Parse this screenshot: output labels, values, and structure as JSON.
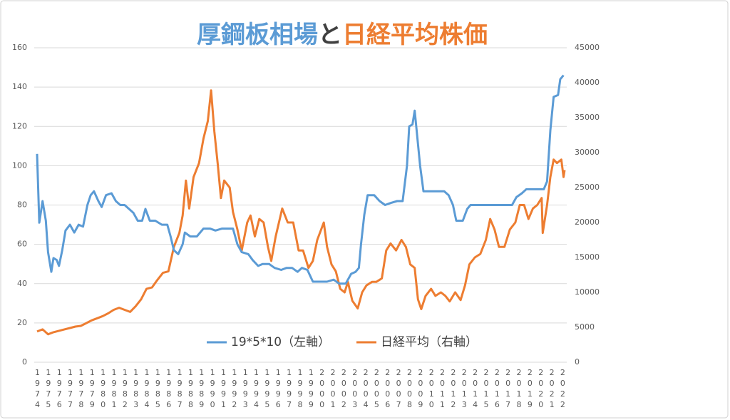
{
  "chart_data": {
    "type": "line",
    "title": [
      "厚鋼板相場",
      "と",
      "日経平均株価"
    ],
    "title_colors": [
      "#5b9bd5",
      "#404040",
      "#ed7d31"
    ],
    "xlim": [
      1974,
      2022.2
    ],
    "xticks": [
      1974,
      1975,
      1976,
      1977,
      1978,
      1979,
      1980,
      1981,
      1982,
      1983,
      1984,
      1985,
      1986,
      1987,
      1988,
      1989,
      1990,
      1991,
      1992,
      1993,
      1994,
      1995,
      1996,
      1997,
      1998,
      1999,
      2000,
      2001,
      2002,
      2003,
      2004,
      2005,
      2006,
      2007,
      2008,
      2009,
      2010,
      2011,
      2012,
      2013,
      2014,
      2015,
      2016,
      2017,
      2018,
      2019,
      2020,
      2021,
      2022
    ],
    "ylim": [
      0,
      160
    ],
    "yticks": [
      0,
      20,
      40,
      60,
      80,
      100,
      120,
      140,
      160
    ],
    "y2lim": [
      0,
      45000
    ],
    "y2ticks": [
      0,
      5000,
      10000,
      15000,
      20000,
      25000,
      30000,
      35000,
      40000,
      45000
    ],
    "grid": true,
    "legend": "bottom",
    "series": [
      {
        "name": "19*5*10（左軸）",
        "color": "#5b9bd5",
        "axis": "y",
        "x": [
          1974.0,
          1974.2,
          1974.5,
          1974.8,
          1975.0,
          1975.3,
          1975.5,
          1975.8,
          1976.0,
          1976.3,
          1976.6,
          1977,
          1977.4,
          1977.8,
          1978.2,
          1978.6,
          1978.9,
          1979.2,
          1979.6,
          1979.9,
          1980.3,
          1980.8,
          1981.2,
          1981.6,
          1982.0,
          1982.4,
          1982.8,
          1983.2,
          1983.6,
          1983.9,
          1984.3,
          1984.8,
          1985.4,
          1985.9,
          1986.2,
          1986.5,
          1986.9,
          1987.3,
          1987.5,
          1988,
          1988.6,
          1989.2,
          1989.8,
          1990.3,
          1990.9,
          1991.4,
          1991.9,
          1992.3,
          1992.7,
          1993.3,
          1993.7,
          1994.2,
          1994.6,
          1995.2,
          1995.7,
          1996.3,
          1996.8,
          1997.3,
          1997.8,
          1998.2,
          1998.7,
          1999.2,
          1999.8,
          2000.5,
          2001.1,
          2001.6,
          2002.2,
          2002.7,
          2003.1,
          2003.4,
          2003.6,
          2003.9,
          2004.2,
          2004.8,
          2005.3,
          2005.8,
          2006.3,
          2006.9,
          2007.4,
          2007.8,
          2008.0,
          2008.3,
          2008.5,
          2008.7,
          2009.0,
          2009.3,
          2009.8,
          2010.5,
          2011.2,
          2011.6,
          2012.0,
          2012.3,
          2012.9,
          2013.3,
          2013.6,
          2014.5,
          2015.5,
          2016.5,
          2017.4,
          2017.8,
          2018.3,
          2018.7,
          2019.5,
          2020.3,
          2020.6,
          2020.9,
          2021.2,
          2021.6,
          2021.8,
          2022.1
        ],
        "values": [
          106,
          71,
          82,
          72,
          56,
          46,
          53,
          52,
          49,
          57,
          67,
          70,
          66,
          70,
          69,
          80,
          85,
          87,
          82,
          79,
          85,
          86,
          82,
          80,
          80,
          78,
          76,
          72,
          72,
          78,
          72,
          72,
          70,
          70,
          64,
          57,
          55,
          60,
          66,
          64,
          64,
          68,
          68,
          67,
          68,
          68,
          68,
          60,
          56,
          55,
          52,
          49,
          50,
          50,
          48,
          47,
          48,
          48,
          46,
          48,
          47,
          41,
          41,
          41,
          42,
          40,
          40,
          45,
          46,
          48,
          60,
          75,
          85,
          85,
          82,
          80,
          81,
          82,
          82,
          100,
          120,
          121,
          128,
          117,
          100,
          87,
          87,
          87,
          87,
          85,
          80,
          72,
          72,
          78,
          80,
          80,
          80,
          80,
          80,
          84,
          86,
          88,
          88,
          88,
          92,
          118,
          135,
          136,
          144,
          146
        ]
      },
      {
        "name": "日経平均（右軸）",
        "color": "#ed7d31",
        "axis": "y2",
        "x": [
          1974.0,
          1974.5,
          1975.0,
          1975.5,
          1976,
          1976.5,
          1977,
          1977.5,
          1978,
          1978.5,
          1979,
          1979.5,
          1980,
          1980.5,
          1981,
          1981.5,
          1982,
          1982.5,
          1983,
          1983.5,
          1984,
          1984.5,
          1985,
          1985.5,
          1986,
          1986.5,
          1987,
          1987.3,
          1987.6,
          1987.9,
          1988.3,
          1988.8,
          1989.2,
          1989.6,
          1989.9,
          1990.2,
          1990.5,
          1990.8,
          1991.1,
          1991.6,
          1991.9,
          1992.3,
          1992.7,
          1993.2,
          1993.5,
          1993.9,
          1994.3,
          1994.7,
          1995.1,
          1995.4,
          1995.8,
          1996.4,
          1996.9,
          1997.4,
          1997.9,
          1998.3,
          1998.8,
          1999.2,
          1999.6,
          2000.2,
          2000.5,
          2000.9,
          2001.3,
          2001.7,
          2002.1,
          2002.4,
          2002.8,
          2003.3,
          2003.7,
          2004.1,
          2004.6,
          2005.0,
          2005.5,
          2005.9,
          2006.3,
          2006.8,
          2007.3,
          2007.7,
          2008.1,
          2008.5,
          2008.8,
          2009.1,
          2009.5,
          2010.0,
          2010.4,
          2010.9,
          2011.3,
          2011.7,
          2012.2,
          2012.7,
          2013.1,
          2013.5,
          2014.0,
          2014.5,
          2015.0,
          2015.4,
          2015.8,
          2016.2,
          2016.7,
          2017.2,
          2017.7,
          2018.1,
          2018.5,
          2018.9,
          2019.3,
          2019.7,
          2020.1,
          2020.2,
          2020.6,
          2020.9,
          2021.2,
          2021.5,
          2021.9,
          2022.1,
          2022.2
        ],
        "values": [
          4400,
          4700,
          4000,
          4300,
          4500,
          4700,
          4900,
          5100,
          5200,
          5600,
          6000,
          6300,
          6600,
          7000,
          7500,
          7800,
          7500,
          7200,
          8000,
          9000,
          10500,
          10700,
          11800,
          12800,
          13000,
          16500,
          18500,
          21000,
          26000,
          22000,
          26500,
          28500,
          32000,
          34500,
          38900,
          33000,
          28500,
          23500,
          26000,
          25000,
          21500,
          19000,
          16000,
          20000,
          21000,
          18000,
          20500,
          20000,
          16500,
          14500,
          18000,
          22000,
          20000,
          20000,
          16000,
          16000,
          13500,
          14500,
          17500,
          20000,
          16500,
          14000,
          13000,
          10500,
          10000,
          11500,
          8800,
          7700,
          10000,
          11000,
          11500,
          11500,
          12000,
          16000,
          17000,
          16000,
          17500,
          16500,
          14000,
          13500,
          9000,
          7600,
          9500,
          10500,
          9500,
          10000,
          9500,
          8700,
          10000,
          8900,
          11000,
          14000,
          15000,
          15500,
          17500,
          20500,
          19000,
          16500,
          16500,
          19000,
          20000,
          22500,
          22500,
          20500,
          22000,
          22500,
          23500,
          18500,
          22500,
          26500,
          29000,
          28500,
          29000,
          26500,
          27500
        ]
      }
    ]
  }
}
